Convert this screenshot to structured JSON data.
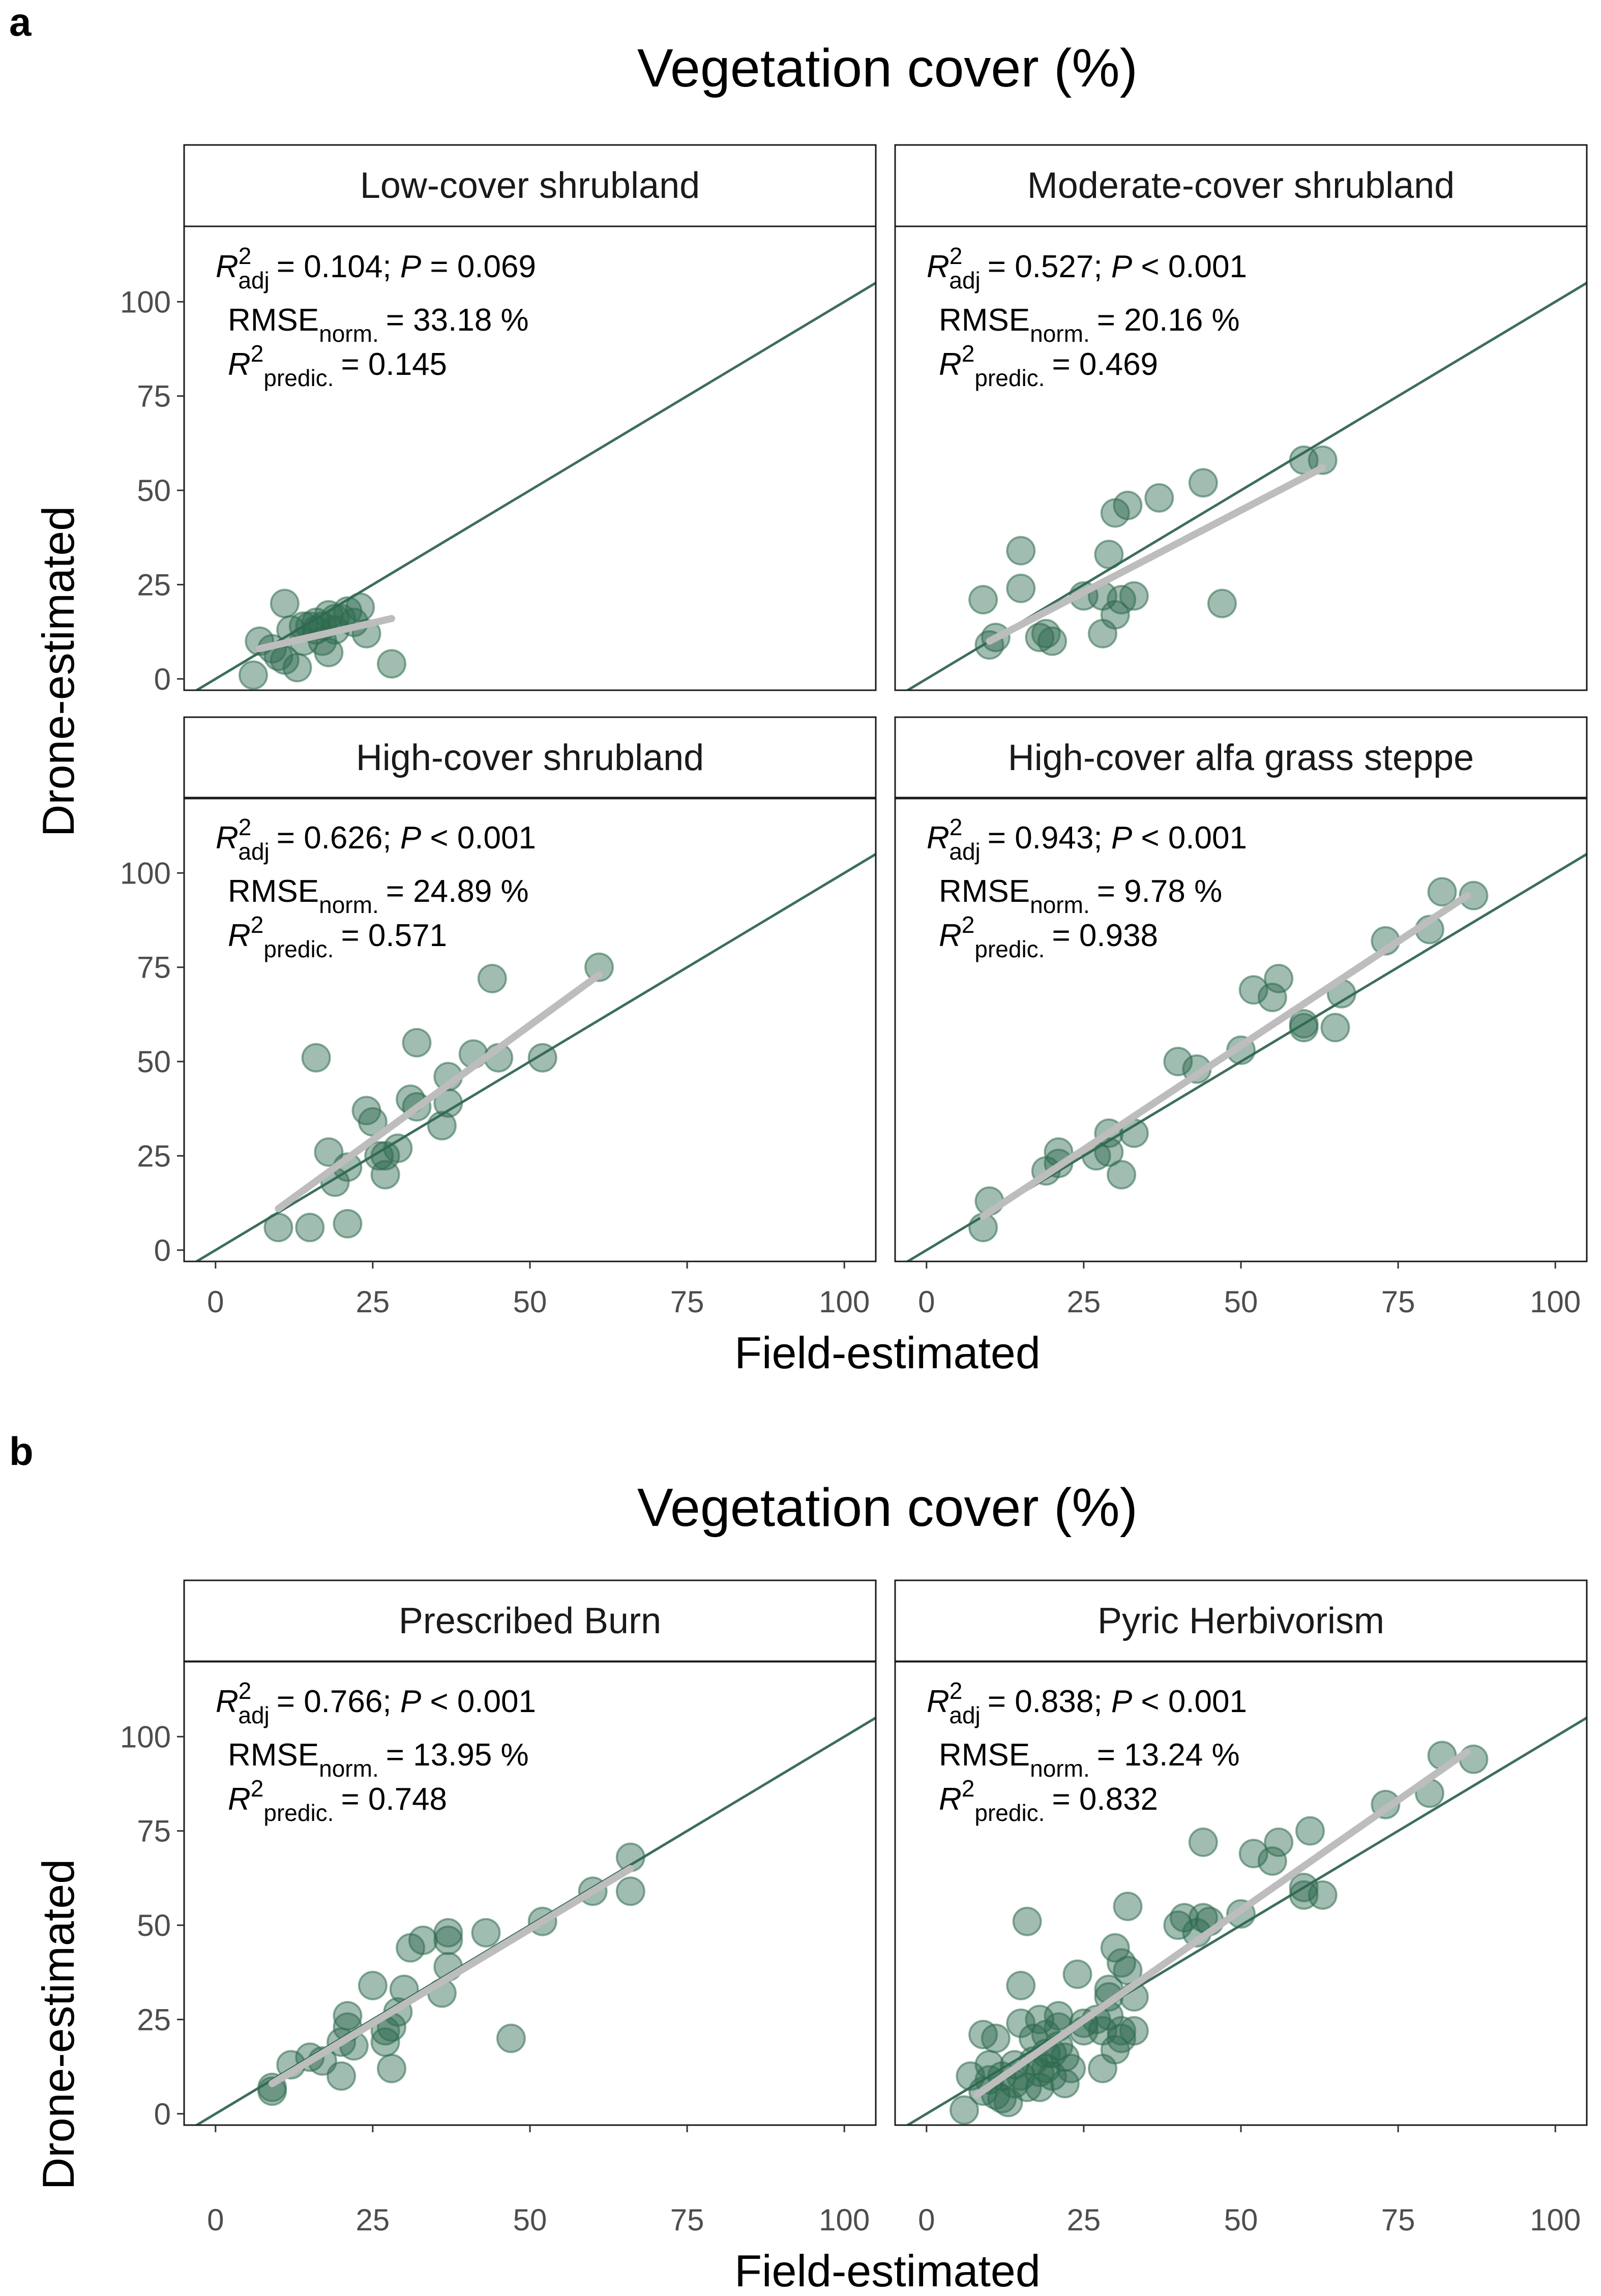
{
  "chart_data": [
    {
      "type": "scatter",
      "label": "a",
      "title": "Vegetation cover (%)",
      "xlabel": "Field-estimated",
      "ylabel": "Drone-estimated",
      "xlim": [
        -5,
        105
      ],
      "ylim": [
        -3,
        120
      ],
      "x_ticks": [
        0,
        25,
        50,
        75,
        100
      ],
      "y_ticks": [
        0,
        25,
        50,
        75,
        100
      ],
      "identity_line": true,
      "colors": {
        "point": "#2f6b4f",
        "identity": "#3e6e5d",
        "fit": "#bdbdbd",
        "strip": "#ffffff"
      },
      "facets": [
        {
          "name": "Low-cover shrubland",
          "stats": {
            "r2adj": "= 0.104; ",
            "p_val": "= 0.069",
            "rmse": "= 33.18 %",
            "r2pred": "= 0.145",
            "lbl_r": "R",
            "lbl_sup": "2",
            "lbl_adj": "adj",
            "lbl_p": "P",
            "lbl_rmse": "RMSE",
            "lbl_norm": "norm.",
            "lbl_pred": "predic."
          },
          "fit": [
            [
              7,
              8
            ],
            [
              28,
              16
            ]
          ],
          "points": [
            [
              6,
              1
            ],
            [
              7,
              10
            ],
            [
              9,
              8
            ],
            [
              10,
              6
            ],
            [
              11,
              20
            ],
            [
              11,
              5
            ],
            [
              12,
              13
            ],
            [
              13,
              3
            ],
            [
              14,
              10
            ],
            [
              14,
              14
            ],
            [
              15,
              14
            ],
            [
              16,
              13
            ],
            [
              16,
              15
            ],
            [
              17,
              10
            ],
            [
              17,
              14
            ],
            [
              18,
              17
            ],
            [
              18,
              7
            ],
            [
              19,
              16
            ],
            [
              19,
              13
            ],
            [
              20,
              16
            ],
            [
              21,
              18
            ],
            [
              22,
              15
            ],
            [
              23,
              19
            ],
            [
              24,
              12
            ],
            [
              28,
              4
            ]
          ]
        },
        {
          "name": "Moderate-cover shrubland",
          "stats": {
            "r2adj": "= 0.527; ",
            "p_val": "< 0.001",
            "rmse": "= 20.16 %",
            "r2pred": "= 0.469",
            "lbl_r": "R",
            "lbl_sup": "2",
            "lbl_adj": "adj",
            "lbl_p": "P",
            "lbl_rmse": "RMSE",
            "lbl_norm": "norm.",
            "lbl_pred": "predic."
          },
          "fit": [
            [
              10,
              10
            ],
            [
              63,
              56
            ]
          ],
          "points": [
            [
              9,
              21
            ],
            [
              10,
              9
            ],
            [
              11,
              11
            ],
            [
              15,
              34
            ],
            [
              15,
              24
            ],
            [
              18,
              11
            ],
            [
              19,
              12
            ],
            [
              20,
              10
            ],
            [
              25,
              22
            ],
            [
              28,
              22
            ],
            [
              28,
              12
            ],
            [
              29,
              33
            ],
            [
              30,
              44
            ],
            [
              30,
              17
            ],
            [
              31,
              21
            ],
            [
              32,
              46
            ],
            [
              33,
              22
            ],
            [
              37,
              48
            ],
            [
              44,
              52
            ],
            [
              47,
              20
            ],
            [
              60,
              58
            ],
            [
              63,
              58
            ]
          ]
        },
        {
          "name": "High-cover shrubland",
          "stats": {
            "r2adj": "= 0.626; ",
            "p_val": "< 0.001",
            "rmse": "= 24.89 %",
            "r2pred": "= 0.571",
            "lbl_r": "R",
            "lbl_sup": "2",
            "lbl_adj": "adj",
            "lbl_p": "P",
            "lbl_rmse": "RMSE",
            "lbl_norm": "norm.",
            "lbl_pred": "predic."
          },
          "fit": [
            [
              10,
              11
            ],
            [
              61,
              73
            ]
          ],
          "points": [
            [
              10,
              6
            ],
            [
              15,
              6
            ],
            [
              16,
              51
            ],
            [
              18,
              26
            ],
            [
              19,
              18
            ],
            [
              21,
              7
            ],
            [
              21,
              22
            ],
            [
              24,
              37
            ],
            [
              25,
              34
            ],
            [
              26,
              25
            ],
            [
              27,
              20
            ],
            [
              27,
              25
            ],
            [
              29,
              27
            ],
            [
              31,
              40
            ],
            [
              32,
              38
            ],
            [
              32,
              55
            ],
            [
              36,
              33
            ],
            [
              37,
              46
            ],
            [
              37,
              39
            ],
            [
              41,
              52
            ],
            [
              44,
              72
            ],
            [
              45,
              51
            ],
            [
              52,
              51
            ],
            [
              61,
              75
            ]
          ]
        },
        {
          "name": "High-cover alfa grass steppe",
          "stats": {
            "r2adj": "= 0.943; ",
            "p_val": "< 0.001",
            "rmse": "= 9.78 %",
            "r2pred": "= 0.938",
            "lbl_r": "R",
            "lbl_sup": "2",
            "lbl_adj": "adj",
            "lbl_p": "P",
            "lbl_rmse": "RMSE",
            "lbl_norm": "norm.",
            "lbl_pred": "predic."
          },
          "fit": [
            [
              9,
              9
            ],
            [
              86,
              94
            ]
          ],
          "points": [
            [
              9,
              6
            ],
            [
              10,
              13
            ],
            [
              19,
              21
            ],
            [
              21,
              26
            ],
            [
              21,
              23
            ],
            [
              27,
              25
            ],
            [
              29,
              26
            ],
            [
              29,
              31
            ],
            [
              31,
              20
            ],
            [
              33,
              31
            ],
            [
              40,
              50
            ],
            [
              43,
              48
            ],
            [
              50,
              53
            ],
            [
              52,
              69
            ],
            [
              55,
              67
            ],
            [
              56,
              72
            ],
            [
              60,
              60
            ],
            [
              60,
              59
            ],
            [
              65,
              59
            ],
            [
              66,
              68
            ],
            [
              73,
              82
            ],
            [
              80,
              85
            ],
            [
              82,
              95
            ],
            [
              87,
              94
            ]
          ]
        }
      ]
    },
    {
      "type": "scatter",
      "label": "b",
      "title": "Vegetation cover (%)",
      "xlabel": "Field-estimated",
      "ylabel": "Drone-estimated",
      "xlim": [
        -5,
        105
      ],
      "ylim": [
        -3,
        120
      ],
      "x_ticks": [
        0,
        25,
        50,
        75,
        100
      ],
      "y_ticks": [
        0,
        25,
        50,
        75,
        100
      ],
      "identity_line": true,
      "colors": {
        "point": "#2f6b4f",
        "identity": "#3e6e5d",
        "fit": "#bdbdbd",
        "strip": "#ffffff"
      },
      "facets": [
        {
          "name": "Prescribed Burn",
          "stats": {
            "r2adj": "= 0.766; ",
            "p_val": "< 0.001",
            "rmse": "= 13.95 %",
            "r2pred": "= 0.748",
            "lbl_r": "R",
            "lbl_sup": "2",
            "lbl_adj": "adj",
            "lbl_p": "P",
            "lbl_rmse": "RMSE",
            "lbl_norm": "norm.",
            "lbl_pred": "predic."
          },
          "fit": [
            [
              9,
              8
            ],
            [
              66,
              65
            ]
          ],
          "points": [
            [
              9,
              6
            ],
            [
              9,
              7
            ],
            [
              12,
              13
            ],
            [
              15,
              15
            ],
            [
              17,
              14
            ],
            [
              20,
              10
            ],
            [
              20,
              19
            ],
            [
              21,
              23
            ],
            [
              21,
              26
            ],
            [
              22,
              18
            ],
            [
              25,
              34
            ],
            [
              27,
              22
            ],
            [
              27,
              19
            ],
            [
              28,
              23
            ],
            [
              28,
              12
            ],
            [
              29,
              27
            ],
            [
              30,
              33
            ],
            [
              31,
              44
            ],
            [
              33,
              46
            ],
            [
              36,
              32
            ],
            [
              37,
              39
            ],
            [
              37,
              48
            ],
            [
              37,
              46
            ],
            [
              43,
              48
            ],
            [
              47,
              20
            ],
            [
              52,
              51
            ],
            [
              60,
              59
            ],
            [
              66,
              59
            ],
            [
              66,
              68
            ]
          ]
        },
        {
          "name": "Pyric Herbivorism",
          "stats": {
            "r2adj": "= 0.838; ",
            "p_val": "< 0.001",
            "rmse": "= 13.24 %",
            "r2pred": "= 0.832",
            "lbl_r": "R",
            "lbl_sup": "2",
            "lbl_adj": "adj",
            "lbl_p": "P",
            "lbl_rmse": "RMSE",
            "lbl_norm": "norm.",
            "lbl_pred": "predic."
          },
          "fit": [
            [
              8,
              5
            ],
            [
              86,
              96
            ]
          ],
          "points": [
            [
              6,
              1
            ],
            [
              7,
              10
            ],
            [
              9,
              21
            ],
            [
              9,
              6
            ],
            [
              10,
              13
            ],
            [
              10,
              9
            ],
            [
              11,
              20
            ],
            [
              11,
              5
            ],
            [
              12,
              4
            ],
            [
              12,
              10
            ],
            [
              13,
              3
            ],
            [
              14,
              13
            ],
            [
              14,
              8
            ],
            [
              15,
              24
            ],
            [
              15,
              34
            ],
            [
              15,
              10
            ],
            [
              16,
              51
            ],
            [
              16,
              7
            ],
            [
              17,
              14
            ],
            [
              17,
              20
            ],
            [
              18,
              25
            ],
            [
              18,
              11
            ],
            [
              18,
              7
            ],
            [
              19,
              16
            ],
            [
              19,
              12
            ],
            [
              19,
              21
            ],
            [
              20,
              16
            ],
            [
              20,
              10
            ],
            [
              21,
              18
            ],
            [
              21,
              26
            ],
            [
              21,
              23
            ],
            [
              22,
              8
            ],
            [
              22,
              15
            ],
            [
              23,
              12
            ],
            [
              24,
              37
            ],
            [
              25,
              22
            ],
            [
              25,
              24
            ],
            [
              27,
              25
            ],
            [
              28,
              22
            ],
            [
              28,
              12
            ],
            [
              29,
              26
            ],
            [
              29,
              31
            ],
            [
              29,
              33
            ],
            [
              30,
              17
            ],
            [
              30,
              44
            ],
            [
              31,
              20
            ],
            [
              31,
              40
            ],
            [
              31,
              22
            ],
            [
              32,
              55
            ],
            [
              32,
              38
            ],
            [
              33,
              31
            ],
            [
              33,
              22
            ],
            [
              40,
              50
            ],
            [
              41,
              52
            ],
            [
              43,
              48
            ],
            [
              44,
              52
            ],
            [
              44,
              72
            ],
            [
              45,
              51
            ],
            [
              50,
              53
            ],
            [
              52,
              69
            ],
            [
              55,
              67
            ],
            [
              56,
              72
            ],
            [
              60,
              58
            ],
            [
              60,
              60
            ],
            [
              61,
              75
            ],
            [
              63,
              58
            ],
            [
              73,
              82
            ],
            [
              80,
              85
            ],
            [
              82,
              95
            ],
            [
              87,
              94
            ]
          ]
        }
      ]
    }
  ]
}
